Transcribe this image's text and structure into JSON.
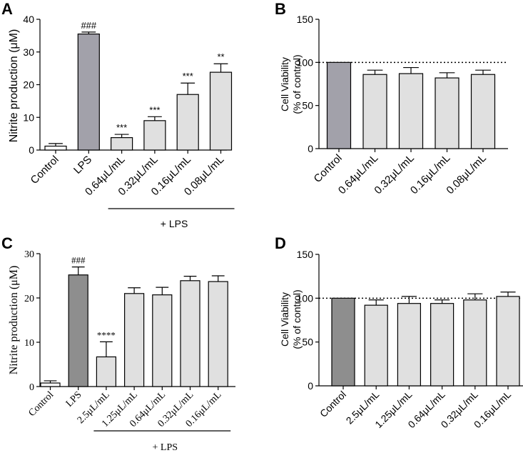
{
  "figure": {
    "panel_labels": [
      "A",
      "B",
      "C",
      "D"
    ]
  },
  "chart_data": [
    {
      "panel": "A",
      "type": "bar",
      "categories": [
        "Control",
        "LPS",
        "0.64μL/mL",
        "0.32μL/mL",
        "0.16μL/mL",
        "0.08μL/mL"
      ],
      "values": [
        1.2,
        35.5,
        3.8,
        9.0,
        17.0,
        23.8
      ],
      "errors": [
        0.8,
        0.6,
        1.0,
        1.2,
        3.5,
        2.6
      ],
      "annotations": [
        "",
        "###",
        "***",
        "***",
        "***",
        "**"
      ],
      "bar_colors": [
        "#ffffff",
        "#a2a1aa",
        "#e0e0e0",
        "#e0e0e0",
        "#e0e0e0",
        "#e0e0e0"
      ],
      "ylabel": "Nitrite production (μM)",
      "ylim": [
        0,
        40
      ],
      "yticks": [
        0,
        10,
        20,
        30,
        40
      ],
      "group_label": "+ LPS",
      "group_range": [
        2,
        5
      ]
    },
    {
      "panel": "B",
      "type": "bar",
      "categories": [
        "Control",
        "0.64μL/mL",
        "0.32μL/mL",
        "0.16μL/mL",
        "0.08μL/mL"
      ],
      "values": [
        100,
        86,
        87,
        82,
        86
      ],
      "errors": [
        0,
        5,
        7,
        6,
        5
      ],
      "bar_colors": [
        "#a2a1aa",
        "#e0e0e0",
        "#e0e0e0",
        "#e0e0e0",
        "#e0e0e0"
      ],
      "ylabel": [
        "Cell Viability",
        "(% of control)"
      ],
      "ylim": [
        0,
        150
      ],
      "yticks": [
        0,
        50,
        100,
        150
      ],
      "reference_line": 100
    },
    {
      "panel": "C",
      "type": "bar",
      "categories": [
        "Control",
        "LPS",
        "2.5μL/mL",
        "1.25μL/mL",
        "0.64μL/mL",
        "0.32μL/mL",
        "0.16μL/mL"
      ],
      "values": [
        0.8,
        25.2,
        6.7,
        21.0,
        20.7,
        23.9,
        23.7
      ],
      "errors": [
        0.5,
        1.8,
        3.4,
        1.3,
        1.7,
        1.0,
        1.3
      ],
      "annotations": [
        "",
        "###",
        "****",
        "",
        "",
        "",
        ""
      ],
      "bar_colors": [
        "#ffffff",
        "#8e8e8e",
        "#e0e0e0",
        "#e0e0e0",
        "#e0e0e0",
        "#e0e0e0",
        "#e0e0e0"
      ],
      "ylabel": "Nitrite production (μM)",
      "ylim": [
        0,
        30
      ],
      "yticks": [
        0,
        10,
        20,
        30
      ],
      "group_label": "+ LPS",
      "group_range": [
        2,
        6
      ]
    },
    {
      "panel": "D",
      "type": "bar",
      "categories": [
        "Control",
        "2.5μL/mL",
        "1.25μL/mL",
        "0.64μL/mL",
        "0.32μL/mL",
        "0.16μL/mL"
      ],
      "values": [
        100,
        92,
        94,
        94,
        98,
        102
      ],
      "errors": [
        0,
        6,
        8,
        4,
        7,
        5
      ],
      "bar_colors": [
        "#8e8e8e",
        "#e0e0e0",
        "#e0e0e0",
        "#e0e0e0",
        "#e0e0e0",
        "#e0e0e0"
      ],
      "ylabel": [
        "Cell Viability",
        "(% of control)"
      ],
      "ylim": [
        0,
        150
      ],
      "yticks": [
        0,
        50,
        100,
        150
      ],
      "reference_line": 100
    }
  ]
}
